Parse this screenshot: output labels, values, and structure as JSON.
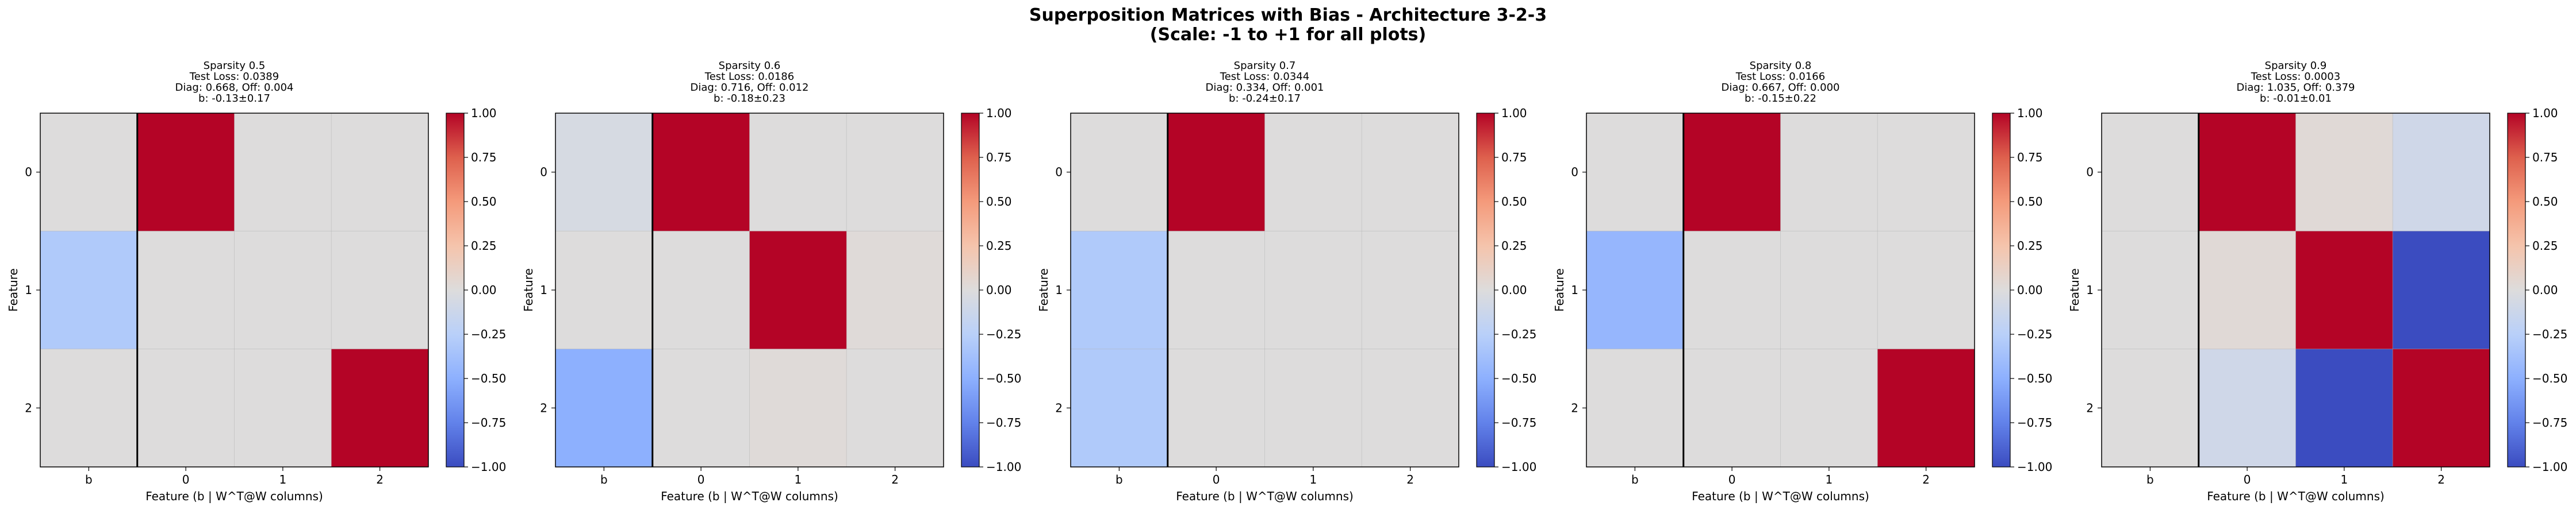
{
  "suptitle_lines": [
    "Superposition Matrices with Bias - Architecture 3-2-3",
    "(Scale: -1 to +1 for all plots)"
  ],
  "colorbar": {
    "ticks": [
      "1.00",
      "0.75",
      "0.50",
      "0.25",
      "0.00",
      "−0.25",
      "−0.50",
      "−0.75",
      "−1.00"
    ],
    "colormap": "coolwarm",
    "vmin": -1,
    "vmax": 1,
    "color_stops": [
      "#3b4cc0",
      "#6282ea",
      "#8db0fe",
      "#b9d0f9",
      "#dddcdc",
      "#f5c4ac",
      "#f49a7b",
      "#de604d",
      "#b40426"
    ]
  },
  "chart_data": [
    {
      "type": "heatmap",
      "title_lines": [
        "Sparsity 0.5",
        "Test Loss: 0.0389",
        "Diag: 0.668, Off: 0.004",
        "b: -0.13±0.17"
      ],
      "xlabel": "Feature (b | W^T@W columns)",
      "ylabel": "Feature",
      "xticklabels": [
        "b",
        "0",
        "1",
        "2"
      ],
      "yticklabels": [
        "0",
        "1",
        "2"
      ],
      "vrange": [
        -1,
        1
      ],
      "grid": true,
      "matrix": [
        [
          0.0,
          1.0,
          0.0,
          0.0
        ],
        [
          -0.3,
          0.0,
          0.0,
          0.0
        ],
        [
          0.0,
          0.0,
          0.0,
          1.0
        ]
      ]
    },
    {
      "type": "heatmap",
      "title_lines": [
        "Sparsity 0.6",
        "Test Loss: 0.0186",
        "Diag: 0.716, Off: 0.012",
        "b: -0.18±0.23"
      ],
      "xlabel": "Feature (b | W^T@W columns)",
      "ylabel": "Feature",
      "xticklabels": [
        "b",
        "0",
        "1",
        "2"
      ],
      "yticklabels": [
        "0",
        "1",
        "2"
      ],
      "vrange": [
        -1,
        1
      ],
      "grid": true,
      "matrix": [
        [
          -0.05,
          1.0,
          0.0,
          0.0
        ],
        [
          0.0,
          0.0,
          1.0,
          0.02
        ],
        [
          -0.5,
          0.0,
          0.02,
          0.0
        ]
      ]
    },
    {
      "type": "heatmap",
      "title_lines": [
        "Sparsity 0.7",
        "Test Loss: 0.0344",
        "Diag: 0.334, Off: 0.001",
        "b: -0.24±0.17"
      ],
      "xlabel": "Feature (b | W^T@W columns)",
      "ylabel": "Feature",
      "xticklabels": [
        "b",
        "0",
        "1",
        "2"
      ],
      "yticklabels": [
        "0",
        "1",
        "2"
      ],
      "vrange": [
        -1,
        1
      ],
      "grid": true,
      "matrix": [
        [
          0.0,
          1.0,
          0.0,
          0.0
        ],
        [
          -0.3,
          0.0,
          0.0,
          0.0
        ],
        [
          -0.3,
          0.0,
          0.0,
          0.0
        ]
      ]
    },
    {
      "type": "heatmap",
      "title_lines": [
        "Sparsity 0.8",
        "Test Loss: 0.0166",
        "Diag: 0.667, Off: 0.000",
        "b: -0.15±0.22"
      ],
      "xlabel": "Feature (b | W^T@W columns)",
      "ylabel": "Feature",
      "xticklabels": [
        "b",
        "0",
        "1",
        "2"
      ],
      "yticklabels": [
        "0",
        "1",
        "2"
      ],
      "vrange": [
        -1,
        1
      ],
      "grid": true,
      "matrix": [
        [
          0.0,
          1.0,
          0.0,
          0.0
        ],
        [
          -0.45,
          0.0,
          0.0,
          0.0
        ],
        [
          0.0,
          0.0,
          0.0,
          1.0
        ]
      ]
    },
    {
      "type": "heatmap",
      "title_lines": [
        "Sparsity 0.9",
        "Test Loss: 0.0003",
        "Diag: 1.035, Off: 0.379",
        "b: -0.01±0.01"
      ],
      "xlabel": "Feature (b | W^T@W columns)",
      "ylabel": "Feature",
      "xticklabels": [
        "b",
        "0",
        "1",
        "2"
      ],
      "yticklabels": [
        "0",
        "1",
        "2"
      ],
      "vrange": [
        -1,
        1
      ],
      "grid": true,
      "matrix": [
        [
          0.0,
          1.0,
          0.03,
          -0.1
        ],
        [
          0.0,
          0.03,
          1.0,
          -1.0
        ],
        [
          0.0,
          -0.1,
          -1.0,
          1.0
        ]
      ]
    }
  ]
}
